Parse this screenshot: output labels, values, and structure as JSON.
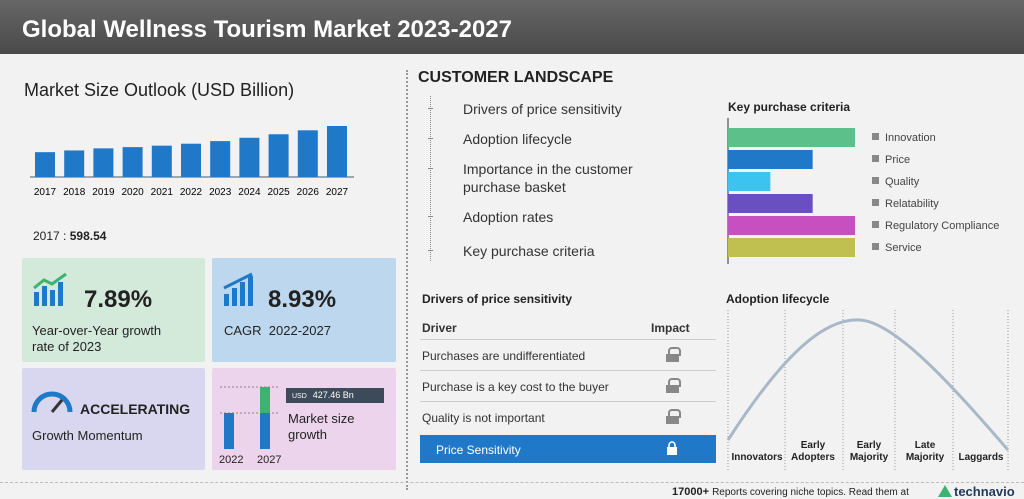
{
  "header": {
    "title": "Global Wellness Tourism Market 2023-2027"
  },
  "market_size": {
    "title": "Market Size Outlook (USD Billion)",
    "categories": [
      "2017",
      "2018",
      "2019",
      "2020",
      "2021",
      "2022",
      "2023",
      "2024",
      "2025",
      "2026",
      "2027"
    ],
    "values": [
      598.54,
      640,
      690,
      720,
      755,
      802,
      865,
      945,
      1030,
      1125,
      1229
    ],
    "separator": ":",
    "color": "#1f78c8"
  },
  "cards": {
    "yoy": {
      "value": "7.89%",
      "label": "Year-over-Year growth rate of 2023"
    },
    "cagr": {
      "value": "8.93%",
      "label": "CAGR  2022-2027"
    },
    "momentum": {
      "value": "ACCELERATING",
      "label": "Growth Momentum"
    },
    "growth": {
      "badge_unit": "USD",
      "badge_value": "427.46 Bn",
      "label": "Market size growth",
      "years": [
        "2022",
        "2027"
      ]
    }
  },
  "customer_landscape": {
    "title": "CUSTOMER LANDSCAPE",
    "items": [
      "Drivers of price sensitivity",
      "Adoption lifecycle",
      "Importance in the customer purchase basket",
      "Adoption rates",
      "Key purchase criteria"
    ]
  },
  "key_purchase_criteria": {
    "title": "Key purchase criteria",
    "items": [
      {
        "name": "Innovation",
        "value": 3,
        "color": "#5cc08a"
      },
      {
        "name": "Price",
        "value": 2,
        "color": "#1f78c8"
      },
      {
        "name": "Quality",
        "value": 1,
        "color": "#3cc4f0"
      },
      {
        "name": "Relatability",
        "value": 2,
        "color": "#6a4fc0"
      },
      {
        "name": "Regulatory Compliance",
        "value": 3,
        "color": "#c84fc0"
      },
      {
        "name": "Service",
        "value": 3,
        "color": "#c0c050"
      }
    ],
    "max": 3
  },
  "drivers_table": {
    "title": "Drivers of price sensitivity",
    "headers": [
      "Driver",
      "Impact"
    ],
    "rows": [
      "Purchases are undifferentiated",
      "Purchase is a key cost to the buyer",
      "Quality is not important"
    ],
    "highlight": "Price Sensitivity"
  },
  "adoption_lifecycle": {
    "title": "Adoption lifecycle",
    "stages": [
      "Innovators",
      "Early Adopters",
      "Early Majority",
      "Late Majority",
      "Laggards"
    ]
  },
  "footer": {
    "count": "17000+",
    "text": "Reports covering niche topics. Read them at",
    "brand": "technavio"
  }
}
